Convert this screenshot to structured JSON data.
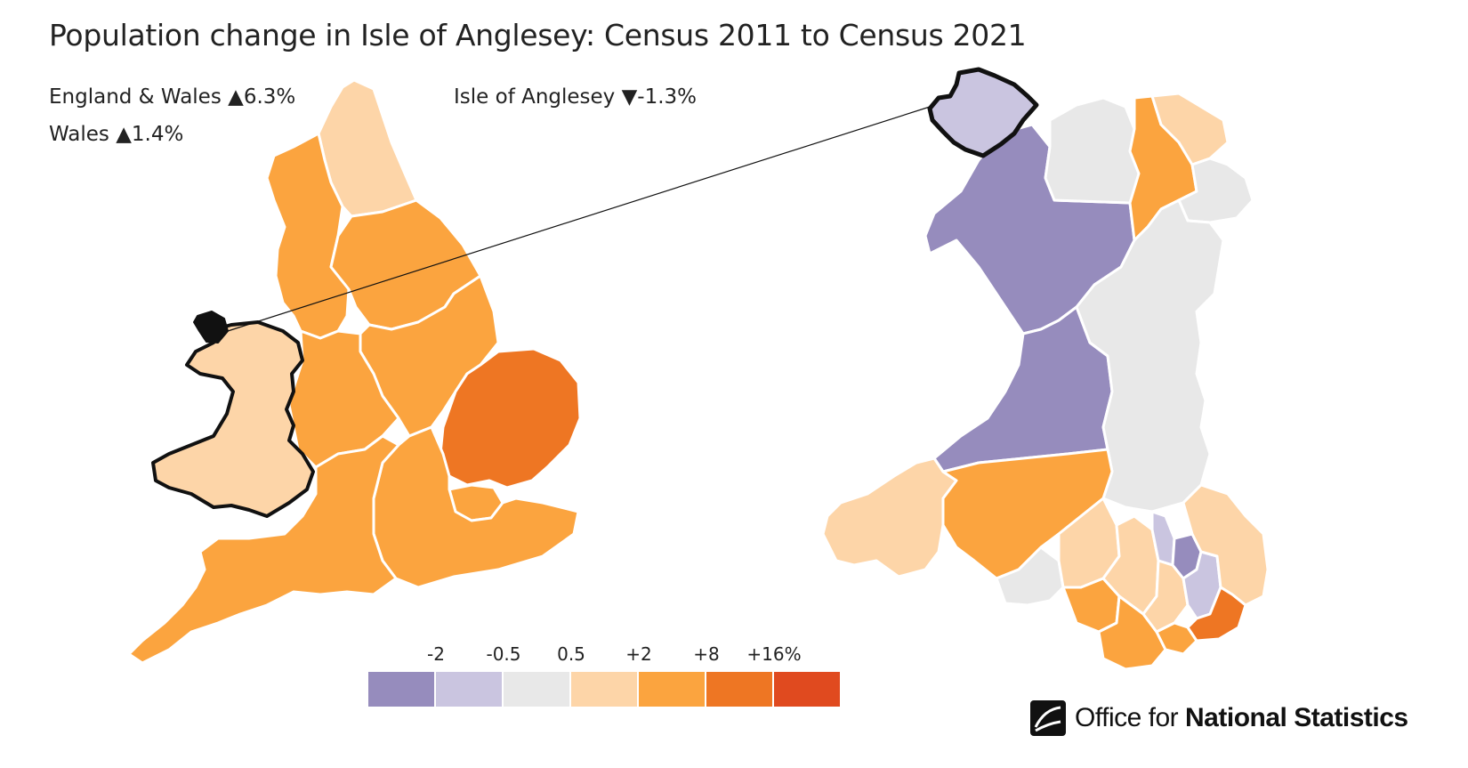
{
  "title": "Population change in Isle of Anglesey: Census 2011 to Census 2021",
  "stats": {
    "england_wales": "England & Wales ▲6.3%",
    "wales": "Wales ▲1.4%",
    "area": "Isle of Anglesey ▼-1.3%"
  },
  "legend": {
    "ticks": [
      "-2",
      "-0.5",
      "0.5",
      "+2",
      "+8",
      "+16%"
    ],
    "colors": [
      "#968cbd",
      "#cac5e0",
      "#e8e8e8",
      "#fdd5a8",
      "#fba43f",
      "#ee7623",
      "#e04a1f"
    ]
  },
  "colors": {
    "outline": "#111111",
    "border": "#ffffff"
  },
  "logo": {
    "light": "Office for",
    "bold": "National Statistics"
  }
}
